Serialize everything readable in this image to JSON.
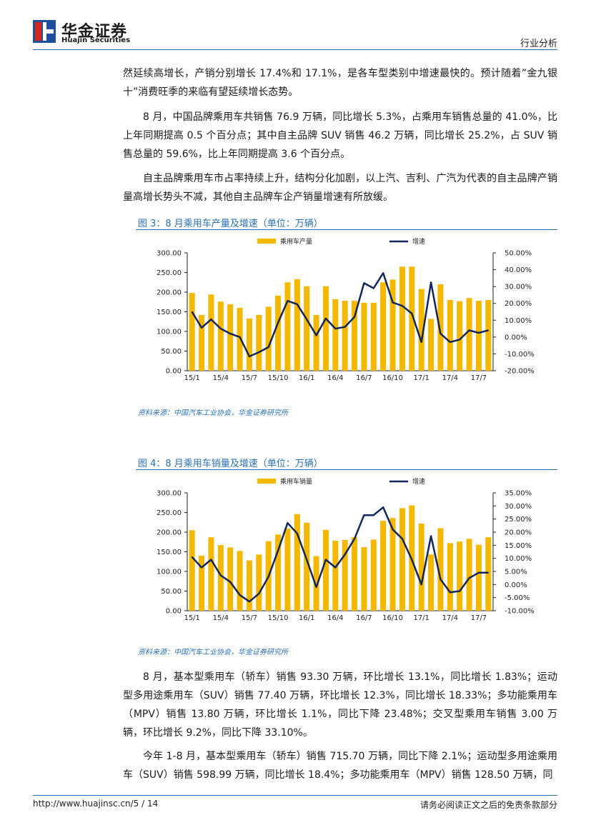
{
  "header": {
    "brand_cn": "华金证券",
    "brand_en": "Huajin Securities",
    "report_type": "行业分析"
  },
  "paragraphs": [
    "然延续高增长，产销分别增长 17.4%和 17.1%，是各车型类别中增速最快的。预计随着”金九银十”消费旺季的来临有望延续增长态势。",
    "8 月，中国品牌乘用车共销售 76.9 万辆，同比增长 5.3%，占乘用车销售总量的 41.0%，比上年同期提高 0.5 个百分点；其中自主品牌 SUV 销售 46.2 万辆，同比增长 25.2%，占 SUV 销售总量的 59.6%，比上年同期提高 3.6 个百分点。",
    "自主品牌乘用车市占率持续上升，结构分化加剧，以上汽、吉利、广汽为代表的自主品牌产销量高增长势头不减，其他自主品牌车企产销量增速有所放缓。",
    "8 月，基本型乘用车（轿车）销售 93.30 万辆，环比增长 13.1%，同比增长 1.83%；运动型多用途乘用车（SUV）销售 77.40 万辆，环比增长 12.3%，同比增长 18.33%；多功能乘用车（MPV）销售 13.80 万辆，环比增长 1.1%，同比下降 23.48%；交叉型乘用车销售 3.00 万辆，环比增长 9.2%，同比下降 33.10%。",
    "今年 1-8 月，基本型乘用车（轿车）销售 715.70 万辆，同比下降 2.1%；运动型多用途乘用车（SUV）销售 598.99 万辆，同比增长 18.4%；多功能乘用车（MPV）销售 128.50 万辆，同"
  ],
  "figures": [
    {
      "title": "图 3：8 月乘用车产量及增速（单位：万辆）",
      "source": "资料来源：中国汽车工业协会，华金证券研究所"
    },
    {
      "title": "图 4：8 月乘用车销量及增速（单位：万辆）",
      "source": "资料来源：中国汽车工业协会，华金证券研究所"
    }
  ],
  "chart_data": [
    {
      "type": "bar+line",
      "title": "图 3：8 月乘用车产量及增速（单位：万辆）",
      "categories": [
        "15/1",
        "15/2",
        "15/3",
        "15/4",
        "15/5",
        "15/6",
        "15/7",
        "15/8",
        "15/9",
        "15/10",
        "15/11",
        "15/12",
        "16/1",
        "16/2",
        "16/3",
        "16/4",
        "16/5",
        "16/6",
        "16/7",
        "16/8",
        "16/9",
        "16/10",
        "16/11",
        "16/12",
        "17/1",
        "17/2",
        "17/3",
        "17/4",
        "17/5",
        "17/6",
        "17/7",
        "17/8"
      ],
      "tick_labels": [
        "15/1",
        "15/4",
        "15/7",
        "15/10",
        "16/1",
        "16/4",
        "16/7",
        "16/10",
        "17/1",
        "17/4",
        "17/7"
      ],
      "series": [
        {
          "name": "乘用车产量",
          "axis": "left",
          "kind": "bar",
          "color": "#f5b800",
          "values": [
            198,
            142,
            194,
            176,
            169,
            160,
            133,
            142,
            163,
            191,
            225,
            233,
            215,
            142,
            215,
            182,
            178,
            178,
            173,
            173,
            225,
            232,
            265,
            265,
            208,
            132,
            220,
            180,
            177,
            185,
            178,
            180
          ]
        },
        {
          "name": "增速",
          "axis": "right",
          "kind": "line",
          "color": "#13265c",
          "values": [
            15,
            5.5,
            10.5,
            5,
            2,
            0,
            -11.5,
            -9,
            -6,
            8.5,
            21.5,
            19.5,
            10.5,
            1,
            11,
            5,
            6,
            12,
            32,
            29,
            38,
            20.5,
            18.5,
            14,
            -3,
            32.5,
            2,
            -3,
            -1.5,
            4,
            2.5,
            4
          ]
        }
      ],
      "left_axis": {
        "min": 0,
        "max": 300,
        "ticks": [
          "0.00",
          "50.00",
          "100.00",
          "150.00",
          "200.00",
          "250.00",
          "300.00"
        ]
      },
      "right_axis": {
        "min": -20,
        "max": 50,
        "ticks": [
          "-20.00%",
          "-10.00%",
          "0.00%",
          "10.00%",
          "20.00%",
          "30.00%",
          "40.00%",
          "50.00%"
        ]
      }
    },
    {
      "type": "bar+line",
      "title": "图 4：8 月乘用车销量及增速（单位：万辆）",
      "categories": [
        "15/1",
        "15/2",
        "15/3",
        "15/4",
        "15/5",
        "15/6",
        "15/7",
        "15/8",
        "15/9",
        "15/10",
        "15/11",
        "15/12",
        "16/1",
        "16/2",
        "16/3",
        "16/4",
        "16/5",
        "16/6",
        "16/7",
        "16/8",
        "16/9",
        "16/10",
        "16/11",
        "16/12",
        "17/1",
        "17/2",
        "17/3",
        "17/4",
        "17/5",
        "17/6",
        "17/7",
        "17/8"
      ],
      "tick_labels": [
        "15/1",
        "15/4",
        "15/7",
        "15/10",
        "16/1",
        "16/4",
        "16/7",
        "16/10",
        "17/1",
        "17/4",
        "17/7"
      ],
      "series": [
        {
          "name": "乘用车销量",
          "axis": "left",
          "kind": "bar",
          "color": "#f5b800",
          "values": [
            205,
            140,
            187,
            167,
            161,
            152,
            128,
            143,
            177,
            194,
            209,
            246,
            224,
            139,
            206,
            178,
            180,
            187,
            162,
            181,
            229,
            236,
            261,
            268,
            222,
            143,
            210,
            172,
            176,
            183,
            168,
            187
          ]
        },
        {
          "name": "增速",
          "axis": "right",
          "kind": "line",
          "color": "#13265c",
          "values": [
            10.5,
            6.5,
            9.5,
            3.5,
            1,
            -4,
            -6.5,
            -3.5,
            3,
            13,
            23.5,
            19.5,
            9.5,
            -1,
            9.5,
            6.5,
            11.5,
            17.5,
            26.5,
            26.5,
            29.5,
            21,
            17.5,
            9.5,
            0,
            18.5,
            2,
            -3,
            -2.5,
            2.5,
            4.5,
            4.5
          ]
        }
      ],
      "left_axis": {
        "min": 0,
        "max": 300,
        "ticks": [
          "0.00",
          "50.00",
          "100.00",
          "150.00",
          "200.00",
          "250.00",
          "300.00"
        ]
      },
      "right_axis": {
        "min": -10,
        "max": 35,
        "ticks": [
          "-10.00%",
          "-5.00%",
          "0.00%",
          "5.00%",
          "10.00%",
          "15.00%",
          "20.00%",
          "25.00%",
          "30.00%",
          "35.00%"
        ]
      }
    }
  ],
  "footer": {
    "link": "http://www.huajinsc.cn/5 / 14",
    "note": "请务必阅读正文之后的免责条款部分"
  }
}
